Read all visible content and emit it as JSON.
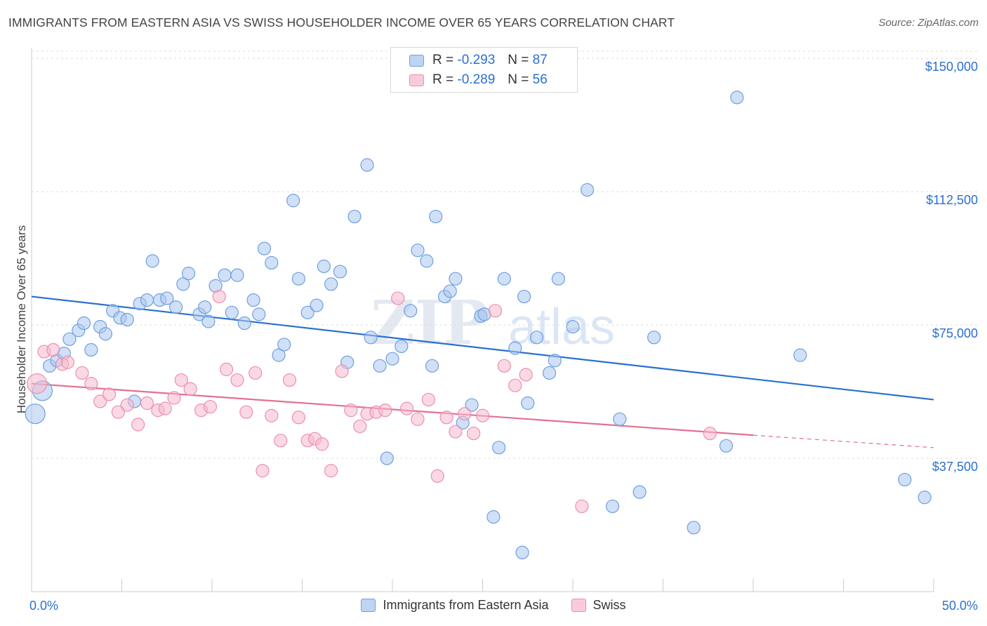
{
  "title": "IMMIGRANTS FROM EASTERN ASIA VS SWISS HOUSEHOLDER INCOME OVER 65 YEARS CORRELATION CHART",
  "source": "Source: ZipAtlas.com",
  "watermark": {
    "zip": "ZIP",
    "atlas": "atlas"
  },
  "legend_top": [
    {
      "r_label": "R = ",
      "r_value": "-0.293",
      "n_label": "N = ",
      "n_value": "87"
    },
    {
      "r_label": "R = ",
      "r_value": "-0.289",
      "n_label": "N = ",
      "n_value": "56"
    }
  ],
  "chart_data": {
    "type": "scatter",
    "ylabel": "Householder Income Over 65 years",
    "xlim": [
      0,
      50
    ],
    "ylim": [
      0,
      152000
    ],
    "x_tick_labels": [
      "0.0%",
      "50.0%"
    ],
    "y_ticks": [
      {
        "value": 37500,
        "label": "$37,500"
      },
      {
        "value": 75000,
        "label": "$75,000"
      },
      {
        "value": 112500,
        "label": "$112,500"
      },
      {
        "value": 150000,
        "label": "$150,000"
      }
    ],
    "grid": true,
    "legend_position": "bottom",
    "series": [
      {
        "name": "Immigrants from Eastern Asia",
        "color": "#a9c6ef",
        "stroke": "#6f9fe0",
        "trend_color": "#2a6fd1",
        "trend": {
          "x": [
            0,
            50
          ],
          "y": [
            83000,
            54000
          ]
        },
        "points": [
          [
            0.2,
            50000
          ],
          [
            0.6,
            56500
          ],
          [
            1.0,
            63500
          ],
          [
            1.4,
            65000
          ],
          [
            1.8,
            67000
          ],
          [
            2.1,
            71000
          ],
          [
            2.6,
            73500
          ],
          [
            2.9,
            75500
          ],
          [
            3.3,
            68000
          ],
          [
            3.8,
            74500
          ],
          [
            4.1,
            72500
          ],
          [
            4.5,
            79000
          ],
          [
            4.9,
            77000
          ],
          [
            5.3,
            76500
          ],
          [
            5.7,
            53500
          ],
          [
            6.0,
            81000
          ],
          [
            6.4,
            82000
          ],
          [
            6.7,
            93000
          ],
          [
            7.1,
            82000
          ],
          [
            7.5,
            82500
          ],
          [
            8.0,
            80000
          ],
          [
            8.4,
            86500
          ],
          [
            8.7,
            89500
          ],
          [
            9.3,
            78000
          ],
          [
            9.6,
            80000
          ],
          [
            9.8,
            76000
          ],
          [
            10.2,
            86000
          ],
          [
            10.7,
            89000
          ],
          [
            11.1,
            78500
          ],
          [
            11.4,
            89000
          ],
          [
            11.8,
            75500
          ],
          [
            12.3,
            82000
          ],
          [
            12.6,
            78000
          ],
          [
            12.9,
            96500
          ],
          [
            13.3,
            92500
          ],
          [
            13.7,
            66500
          ],
          [
            14.0,
            69500
          ],
          [
            14.5,
            110000
          ],
          [
            14.8,
            88000
          ],
          [
            15.3,
            78500
          ],
          [
            15.8,
            80500
          ],
          [
            16.2,
            91500
          ],
          [
            16.6,
            86500
          ],
          [
            17.1,
            90000
          ],
          [
            17.5,
            64500
          ],
          [
            17.9,
            105500
          ],
          [
            18.6,
            120000
          ],
          [
            18.8,
            71500
          ],
          [
            19.3,
            63500
          ],
          [
            19.7,
            37500
          ],
          [
            20.0,
            65500
          ],
          [
            20.5,
            69000
          ],
          [
            21.0,
            79000
          ],
          [
            21.4,
            96000
          ],
          [
            21.9,
            93000
          ],
          [
            22.2,
            63500
          ],
          [
            22.4,
            105500
          ],
          [
            22.9,
            83000
          ],
          [
            23.2,
            84500
          ],
          [
            23.5,
            88000
          ],
          [
            23.9,
            47500
          ],
          [
            24.4,
            52500
          ],
          [
            24.9,
            77500
          ],
          [
            25.1,
            78000
          ],
          [
            25.6,
            21000
          ],
          [
            25.9,
            40500
          ],
          [
            26.2,
            88000
          ],
          [
            26.8,
            68500
          ],
          [
            27.2,
            11000
          ],
          [
            27.3,
            83000
          ],
          [
            27.5,
            53000
          ],
          [
            28.0,
            71500
          ],
          [
            28.7,
            61500
          ],
          [
            29.0,
            65000
          ],
          [
            29.2,
            88000
          ],
          [
            30.0,
            74500
          ],
          [
            30.8,
            113000
          ],
          [
            32.2,
            24000
          ],
          [
            32.6,
            48500
          ],
          [
            33.7,
            28000
          ],
          [
            34.5,
            71500
          ],
          [
            36.7,
            18000
          ],
          [
            38.5,
            41000
          ],
          [
            39.1,
            139000
          ],
          [
            42.6,
            66500
          ],
          [
            48.4,
            31500
          ],
          [
            49.5,
            26500
          ]
        ],
        "large_points": [
          [
            0.2,
            50000
          ],
          [
            0.6,
            56500
          ]
        ]
      },
      {
        "name": "Swiss",
        "color": "#f6b9cd",
        "stroke": "#ec8fae",
        "trend_color": "#e5708f",
        "trend": {
          "x": [
            0,
            40
          ],
          "y": [
            58500,
            44000
          ]
        },
        "trend_dashed": {
          "x": [
            40,
            50
          ],
          "y": [
            44000,
            40500
          ]
        },
        "points": [
          [
            0.3,
            58500
          ],
          [
            0.7,
            67500
          ],
          [
            1.2,
            68000
          ],
          [
            1.7,
            64000
          ],
          [
            2.0,
            64500
          ],
          [
            2.8,
            61500
          ],
          [
            3.3,
            58500
          ],
          [
            3.8,
            53500
          ],
          [
            4.3,
            55500
          ],
          [
            4.8,
            50500
          ],
          [
            5.3,
            52500
          ],
          [
            5.9,
            47000
          ],
          [
            6.4,
            53000
          ],
          [
            7.0,
            51000
          ],
          [
            7.4,
            51500
          ],
          [
            7.9,
            54500
          ],
          [
            8.3,
            59500
          ],
          [
            8.8,
            57000
          ],
          [
            9.4,
            51000
          ],
          [
            9.9,
            52000
          ],
          [
            10.4,
            83000
          ],
          [
            10.8,
            62500
          ],
          [
            11.4,
            59500
          ],
          [
            11.9,
            50500
          ],
          [
            12.4,
            61500
          ],
          [
            12.8,
            34000
          ],
          [
            13.3,
            49500
          ],
          [
            13.8,
            42500
          ],
          [
            14.3,
            59500
          ],
          [
            14.8,
            49000
          ],
          [
            15.3,
            42500
          ],
          [
            15.7,
            43000
          ],
          [
            16.1,
            41500
          ],
          [
            16.6,
            34000
          ],
          [
            17.2,
            62000
          ],
          [
            17.7,
            51000
          ],
          [
            18.2,
            46500
          ],
          [
            18.6,
            50000
          ],
          [
            19.1,
            50500
          ],
          [
            19.6,
            51000
          ],
          [
            20.3,
            82500
          ],
          [
            20.8,
            51500
          ],
          [
            21.4,
            48500
          ],
          [
            22.0,
            54000
          ],
          [
            22.5,
            32500
          ],
          [
            23.0,
            49000
          ],
          [
            23.5,
            45000
          ],
          [
            24.0,
            50000
          ],
          [
            24.5,
            44500
          ],
          [
            25.0,
            49500
          ],
          [
            25.7,
            79000
          ],
          [
            26.2,
            63500
          ],
          [
            26.8,
            58000
          ],
          [
            27.4,
            61000
          ],
          [
            30.5,
            24000
          ],
          [
            37.6,
            44500
          ]
        ],
        "large_points": [
          [
            0.3,
            58500
          ]
        ]
      }
    ]
  }
}
